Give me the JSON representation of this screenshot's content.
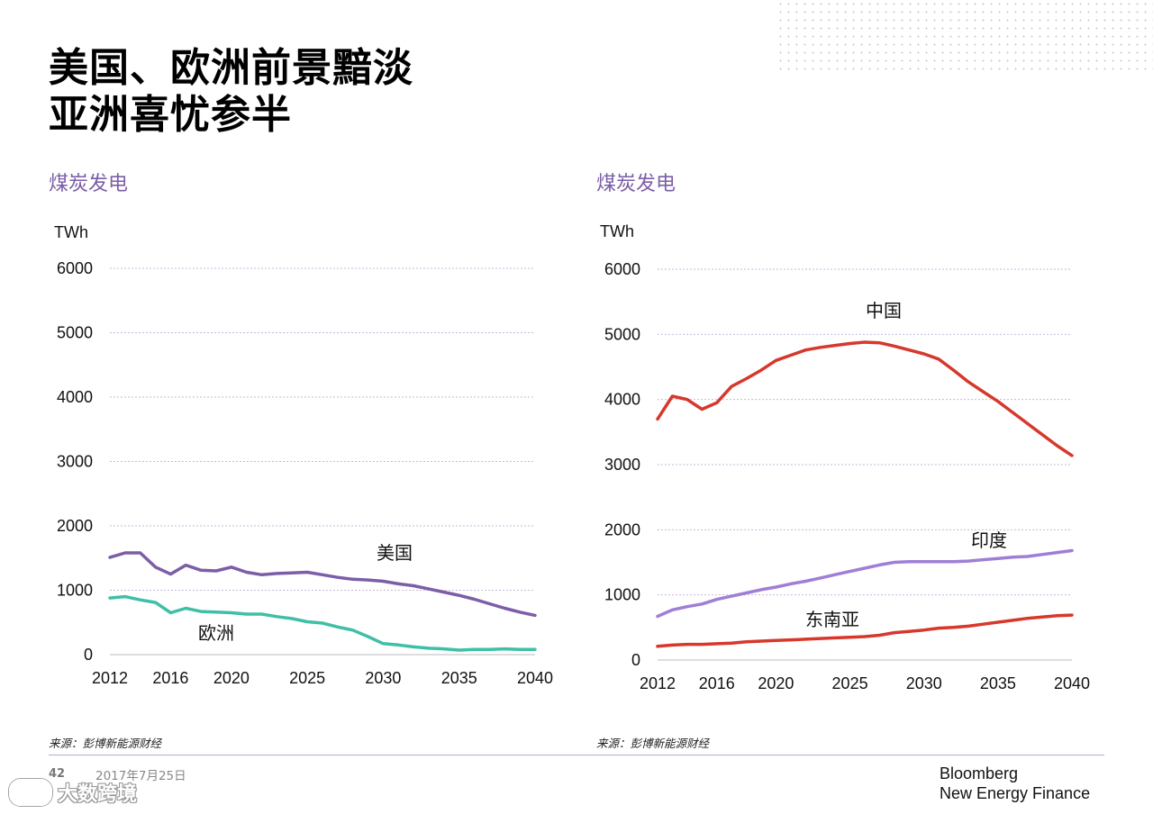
{
  "slide": {
    "title_line1": "美国、欧洲前景黯淡",
    "title_line2": "亚洲喜忧参半"
  },
  "footer": {
    "page_number": "42",
    "date": "2017年7月25日",
    "brand_line1": "Bloomberg",
    "brand_line2": "New Energy Finance",
    "watermark": "大数跨境"
  },
  "colors": {
    "accent_purple": "#7b5ea7",
    "us_line": "#7b5ea7",
    "europe_line": "#3fbfa5",
    "china_line": "#d6382c",
    "india_line": "#9f7fd6",
    "sea_line": "#d6382c",
    "gridline": "#c9b7d9"
  },
  "chart_data": [
    {
      "type": "line",
      "title": "煤炭发电",
      "ylabel": "TWh",
      "ylim": [
        0,
        6000
      ],
      "yticks": [
        0,
        1000,
        2000,
        3000,
        4000,
        5000,
        6000
      ],
      "xlim": [
        2012,
        2040
      ],
      "xticks": [
        2012,
        2016,
        2020,
        2025,
        2030,
        2035,
        2040
      ],
      "grid": true,
      "source": "来源：彭博新能源财经",
      "x": [
        2012,
        2013,
        2014,
        2015,
        2016,
        2017,
        2018,
        2019,
        2020,
        2021,
        2022,
        2023,
        2024,
        2025,
        2026,
        2027,
        2028,
        2029,
        2030,
        2031,
        2032,
        2033,
        2034,
        2035,
        2036,
        2037,
        2038,
        2039,
        2040
      ],
      "series": [
        {
          "name": "美国",
          "color_key": "us_line",
          "values": [
            1510,
            1580,
            1580,
            1360,
            1250,
            1390,
            1310,
            1300,
            1360,
            1280,
            1240,
            1260,
            1270,
            1280,
            1240,
            1200,
            1170,
            1160,
            1140,
            1100,
            1070,
            1020,
            970,
            920,
            860,
            790,
            720,
            660,
            610
          ]
        },
        {
          "name": "欧洲",
          "color_key": "europe_line",
          "values": [
            880,
            900,
            850,
            810,
            650,
            720,
            670,
            660,
            650,
            630,
            630,
            590,
            560,
            510,
            490,
            430,
            380,
            280,
            170,
            150,
            120,
            100,
            90,
            70,
            80,
            80,
            90,
            80,
            80
          ]
        }
      ]
    },
    {
      "type": "line",
      "title": "煤炭发电",
      "ylabel": "TWh",
      "ylim": [
        0,
        6000
      ],
      "yticks": [
        0,
        1000,
        2000,
        3000,
        4000,
        5000,
        6000
      ],
      "xlim": [
        2012,
        2040
      ],
      "xticks": [
        2012,
        2016,
        2020,
        2025,
        2030,
        2035,
        2040
      ],
      "grid": true,
      "source": "来源：彭博新能源财经",
      "x": [
        2012,
        2013,
        2014,
        2015,
        2016,
        2017,
        2018,
        2019,
        2020,
        2021,
        2022,
        2023,
        2024,
        2025,
        2026,
        2027,
        2028,
        2029,
        2030,
        2031,
        2032,
        2033,
        2034,
        2035,
        2036,
        2037,
        2038,
        2039,
        2040
      ],
      "series": [
        {
          "name": "中国",
          "color_key": "china_line",
          "values": [
            3700,
            4050,
            4000,
            3850,
            3950,
            4200,
            4320,
            4450,
            4600,
            4680,
            4760,
            4800,
            4830,
            4860,
            4880,
            4870,
            4820,
            4760,
            4700,
            4620,
            4450,
            4270,
            4120,
            3970,
            3800,
            3630,
            3460,
            3290,
            3140
          ]
        },
        {
          "name": "印度",
          "color_key": "india_line",
          "values": [
            670,
            770,
            820,
            860,
            930,
            980,
            1030,
            1080,
            1120,
            1170,
            1210,
            1260,
            1310,
            1360,
            1410,
            1460,
            1500,
            1510,
            1510,
            1510,
            1510,
            1520,
            1540,
            1560,
            1580,
            1590,
            1620,
            1650,
            1680
          ]
        },
        {
          "name": "东南亚",
          "color_key": "sea_line",
          "values": [
            210,
            230,
            240,
            240,
            250,
            260,
            280,
            290,
            300,
            310,
            320,
            330,
            340,
            350,
            360,
            380,
            420,
            440,
            460,
            490,
            500,
            520,
            550,
            580,
            610,
            640,
            660,
            680,
            690
          ]
        }
      ]
    }
  ]
}
